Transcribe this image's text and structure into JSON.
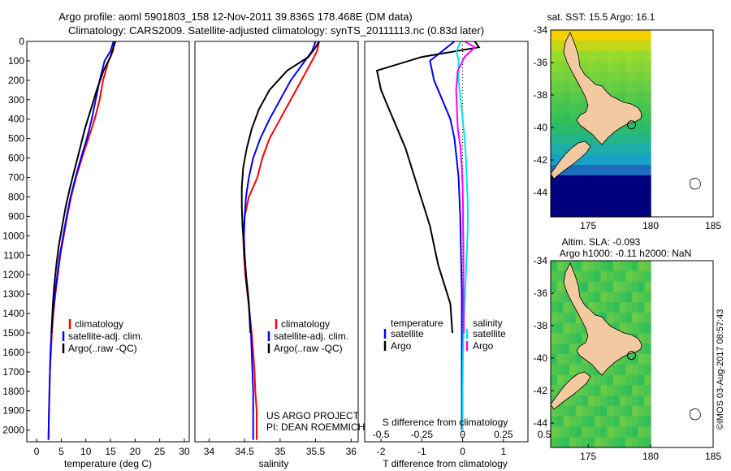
{
  "header": {
    "title_line1": "Argo profile: aoml 5901803_158 12-Nov-2011 39.836S 178.468E (DM data)",
    "title_line2": "Climatology: CARS2009. Satellite-adjusted climatology: synTS_20111113.nc (0.83d later)"
  },
  "credits": {
    "project": "US ARGO PROJECT",
    "pi": "PI: DEAN ROEMMICH",
    "watermark": "©IMOS 03-Aug-2017 08:57:43"
  },
  "colors": {
    "climatology": "#ff0000",
    "satellite": "#0000ff",
    "argo": "#000000",
    "salinity_satellite": "#00e5ee",
    "salinity_argo": "#ff00ff",
    "land": "#f2c9a0",
    "deep_ocean": "#00007f"
  },
  "chart_data": [
    {
      "id": "temperature",
      "type": "line",
      "xlabel": "temperature (deg C)",
      "ylabel": "",
      "xlim": [
        -2,
        31
      ],
      "ylim": [
        0,
        2060
      ],
      "y_inverted": true,
      "xticks": [
        0,
        5,
        10,
        15,
        20,
        25,
        30
      ],
      "yticks": [
        0,
        100,
        200,
        300,
        400,
        500,
        600,
        700,
        800,
        900,
        1000,
        1100,
        1200,
        1300,
        1400,
        1500,
        1600,
        1700,
        1800,
        1900,
        2000
      ],
      "legend": [
        "climatology",
        "satellite-adj. clim.",
        "Argo(..raw -QC)"
      ],
      "legend_position": "lower-right",
      "series": [
        {
          "name": "climatology",
          "color": "#ff0000",
          "x": [
            15.8,
            15.5,
            14.6,
            13.5,
            12.8,
            11.8,
            10.5,
            9.2,
            8.0,
            7.0,
            6.2,
            5.5,
            4.8,
            4.3,
            3.8,
            3.4,
            3.1,
            2.9,
            2.7,
            2.6,
            2.5,
            2.4
          ],
          "y": [
            0,
            50,
            100,
            200,
            300,
            400,
            500,
            600,
            700,
            800,
            900,
            1000,
            1100,
            1200,
            1300,
            1400,
            1500,
            1600,
            1700,
            1800,
            1900,
            2050
          ]
        },
        {
          "name": "satellite-adj. clim.",
          "color": "#0000ff",
          "x": [
            15.6,
            15.0,
            13.8,
            12.8,
            12.0,
            11.2,
            10.2,
            9.0,
            7.9,
            6.9,
            6.1,
            5.4,
            4.7,
            4.2,
            3.7,
            3.3,
            3.0,
            2.8,
            2.7,
            2.6,
            2.5,
            2.4
          ],
          "y": [
            0,
            50,
            100,
            200,
            300,
            400,
            500,
            600,
            700,
            800,
            900,
            1000,
            1100,
            1200,
            1300,
            1400,
            1500,
            1600,
            1700,
            1800,
            1900,
            2050
          ]
        },
        {
          "name": "Argo(..raw -QC)",
          "color": "#000000",
          "x": [
            16.0,
            15.6,
            15.0,
            13.6,
            12.2,
            11.0,
            9.8,
            8.8,
            7.8,
            6.8,
            5.9,
            5.2,
            4.5,
            4.0,
            3.6,
            3.3,
            3.0
          ],
          "y": [
            0,
            30,
            80,
            150,
            250,
            350,
            450,
            550,
            650,
            750,
            850,
            950,
            1050,
            1150,
            1250,
            1350,
            1500
          ]
        }
      ]
    },
    {
      "id": "salinity",
      "type": "line",
      "xlabel": "salinity",
      "ylabel": "",
      "xlim": [
        33.8,
        36.1
      ],
      "ylim": [
        0,
        2060
      ],
      "y_inverted": true,
      "xticks": [
        34,
        34.5,
        35,
        35.5,
        36
      ],
      "legend": [
        "climatology",
        "satellite-adj. clim.",
        "Argo(..raw -QC)"
      ],
      "legend_position": "lower-right",
      "series": [
        {
          "name": "climatology",
          "color": "#ff0000",
          "x": [
            35.55,
            35.52,
            35.45,
            35.3,
            35.15,
            35.0,
            34.85,
            34.75,
            34.68,
            34.56,
            34.5,
            34.48,
            34.49,
            34.51,
            34.54,
            34.57,
            34.6,
            34.62,
            34.64,
            34.65,
            34.67,
            34.67
          ],
          "y": [
            0,
            50,
            100,
            200,
            300,
            400,
            500,
            600,
            700,
            800,
            900,
            1000,
            1100,
            1200,
            1300,
            1400,
            1500,
            1600,
            1700,
            1800,
            1900,
            2050
          ]
        },
        {
          "name": "satellite-adj. clim.",
          "color": "#0000ff",
          "x": [
            35.5,
            35.45,
            35.35,
            35.15,
            35.0,
            34.85,
            34.72,
            34.62,
            34.56,
            34.52,
            34.5,
            34.49,
            34.5,
            34.52,
            34.55,
            34.57,
            34.59,
            34.6,
            34.61,
            34.62,
            34.62,
            34.62
          ],
          "y": [
            0,
            50,
            100,
            200,
            300,
            400,
            500,
            600,
            700,
            800,
            900,
            1000,
            1100,
            1200,
            1300,
            1400,
            1500,
            1600,
            1700,
            1800,
            1900,
            2050
          ]
        },
        {
          "name": "Argo(..raw -QC)",
          "color": "#000000",
          "x": [
            35.55,
            35.5,
            35.4,
            35.1,
            34.85,
            34.7,
            34.6,
            34.53,
            34.48,
            34.46,
            34.46,
            34.47,
            34.49,
            34.51,
            34.53,
            34.56,
            34.58
          ],
          "y": [
            0,
            30,
            80,
            150,
            250,
            350,
            450,
            550,
            650,
            750,
            850,
            950,
            1050,
            1150,
            1250,
            1350,
            1500
          ]
        }
      ]
    },
    {
      "id": "difference",
      "type": "line",
      "xlabel": "T difference from climatology",
      "xlabel_top": "S difference from climatology",
      "xlim": [
        -2.4,
        1.6
      ],
      "ylim": [
        0,
        2060
      ],
      "y_inverted": true,
      "xticks": [
        -2,
        -1,
        0,
        1
      ],
      "xticks_s": [
        "-0.5",
        "-0.25",
        "0",
        "0.25",
        "0.5"
      ],
      "reference_line": "x = 0 (dotted)",
      "legend_groups": [
        {
          "title": "temperature",
          "items": [
            {
              "label": "satellite",
              "color": "#0000ff"
            },
            {
              "label": "Argo",
              "color": "#000000"
            }
          ]
        },
        {
          "title": "salinity",
          "items": [
            {
              "label": "satellite",
              "color": "#00e5ee"
            },
            {
              "label": "Argo",
              "color": "#ff00ff"
            }
          ]
        }
      ],
      "legend_position": "lower-center",
      "series": [
        {
          "name": "T satellite",
          "color": "#0000ff",
          "x": [
            -0.2,
            -0.5,
            -0.8,
            -0.7,
            -0.5,
            -0.3,
            -0.2,
            -0.15,
            -0.1,
            -0.08,
            -0.06,
            -0.05,
            -0.04,
            -0.03,
            -0.02,
            -0.02,
            -0.02,
            -0.02,
            -0.02,
            -0.02
          ],
          "y": [
            0,
            50,
            100,
            200,
            300,
            400,
            500,
            600,
            700,
            800,
            900,
            1000,
            1100,
            1200,
            1300,
            1400,
            1500,
            1600,
            1800,
            2000
          ]
        },
        {
          "name": "T Argo",
          "color": "#000000",
          "x": [
            0.3,
            0.4,
            -1.0,
            -2.1,
            -2.0,
            -1.8,
            -1.6,
            -1.4,
            -1.25,
            -1.1,
            -0.95,
            -0.8,
            -0.7,
            -0.6,
            -0.45,
            -0.3,
            -0.25
          ],
          "y": [
            0,
            30,
            80,
            150,
            250,
            350,
            450,
            550,
            650,
            750,
            850,
            950,
            1050,
            1150,
            1250,
            1350,
            1500
          ]
        },
        {
          "name": "S satellite",
          "color": "#00e5ee",
          "x": [
            -0.05,
            -0.15,
            -0.1,
            -0.1,
            -0.05,
            0.0,
            0.05,
            0.08,
            0.1,
            0.12,
            0.13,
            0.12,
            0.1,
            0.08,
            0.06,
            0.04,
            0.02,
            0.01,
            0.0,
            0.0
          ],
          "y": [
            0,
            50,
            100,
            200,
            300,
            400,
            500,
            600,
            700,
            800,
            900,
            1000,
            1100,
            1200,
            1300,
            1400,
            1500,
            1600,
            1800,
            2000
          ]
        },
        {
          "name": "S Argo",
          "color": "#ff00ff",
          "x": [
            0.05,
            0.3,
            0.05,
            -0.12,
            -0.16,
            -0.14,
            -0.12,
            -0.05,
            -0.02,
            0.0,
            0.01,
            0.01,
            0.02,
            0.02,
            0.02,
            0.02,
            0.03
          ],
          "y": [
            0,
            30,
            80,
            150,
            250,
            350,
            450,
            550,
            650,
            750,
            850,
            950,
            1050,
            1150,
            1250,
            1350,
            1500
          ]
        }
      ]
    },
    {
      "id": "sst_map",
      "type": "heatmap",
      "title": "sat. SST: 15.5 Argo: 16.1",
      "xlim": [
        172,
        185
      ],
      "ylim": [
        -45.5,
        -34
      ],
      "xticks": [
        175,
        180,
        185
      ],
      "yticks": [
        -34,
        -36,
        -38,
        -40,
        -42,
        -44
      ],
      "argo_position": [
        178.468,
        -39.836
      ],
      "data_extent_lon": [
        172,
        180
      ]
    },
    {
      "id": "sla_map",
      "type": "heatmap",
      "title_line1": "Altim. SLA: -0.093",
      "title_line2": "Argo h1000: -0.11 h2000: NaN",
      "xlim": [
        172,
        185
      ],
      "ylim": [
        -45.5,
        -34
      ],
      "xticks": [
        175,
        180,
        185
      ],
      "yticks": [
        -34,
        -36,
        -38,
        -40,
        -42,
        -44
      ],
      "argo_position": [
        178.468,
        -39.836
      ],
      "data_extent_lon": [
        172,
        180
      ]
    }
  ]
}
